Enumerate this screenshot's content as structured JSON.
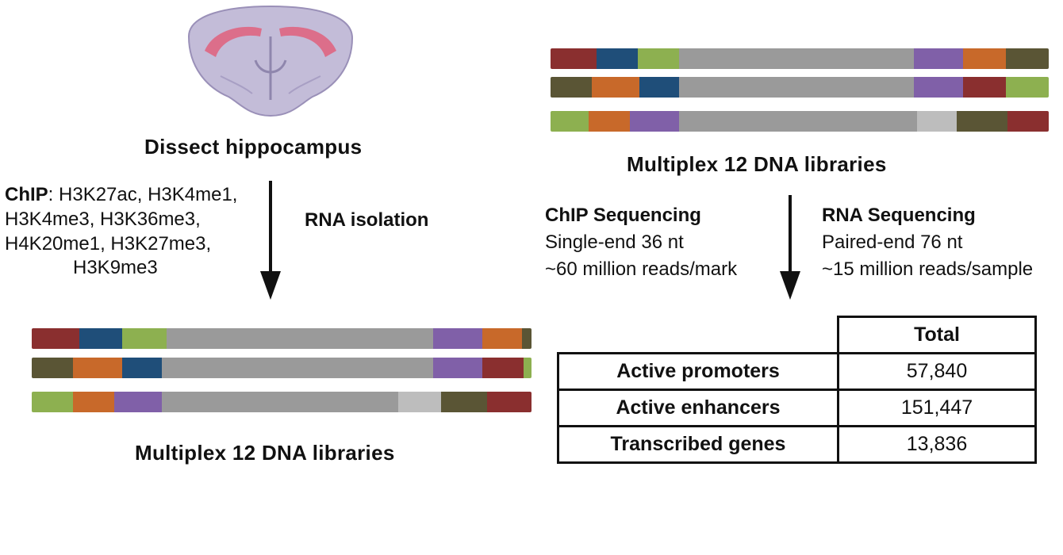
{
  "left": {
    "dissect_label": "Dissect hippocampus",
    "chip_prefix": "ChIP",
    "chip_lines": [
      ": H3K27ac, H3K4me1,",
      "H3K4me3, H3K36me3,",
      "H4K20me1,  H3K27me3,",
      "H3K9me3"
    ],
    "rna_label": "RNA isolation",
    "multiplex_label": "Multiplex 12 DNA libraries"
  },
  "right": {
    "multiplex_label": "Multiplex 12 DNA libraries",
    "chip_seq": {
      "title": "ChIP Sequencing",
      "line1": "Single-end 36 nt",
      "line2": "~60  million reads/mark"
    },
    "rna_seq": {
      "title": "RNA Sequencing",
      "line1": "Paired-end 76 nt",
      "line2": "~15  million reads/sample"
    }
  },
  "table": {
    "header": "Total",
    "rows": [
      {
        "label": "Active promoters",
        "value": "57,840"
      },
      {
        "label": "Active enhancers",
        "value": "151,447"
      },
      {
        "label": "Transcribed genes",
        "value": "13,836"
      }
    ]
  },
  "colors": {
    "dark_red": "#8a2f2f",
    "blue": "#1f4e79",
    "green": "#8db050",
    "gray": "#9a9a9a",
    "light_gray": "#bdbdbd",
    "purple": "#8060a8",
    "orange": "#c8692a",
    "olive": "#5a5535",
    "brain_fill": "#c3bcd8",
    "hippocampus": "#e0607c"
  }
}
